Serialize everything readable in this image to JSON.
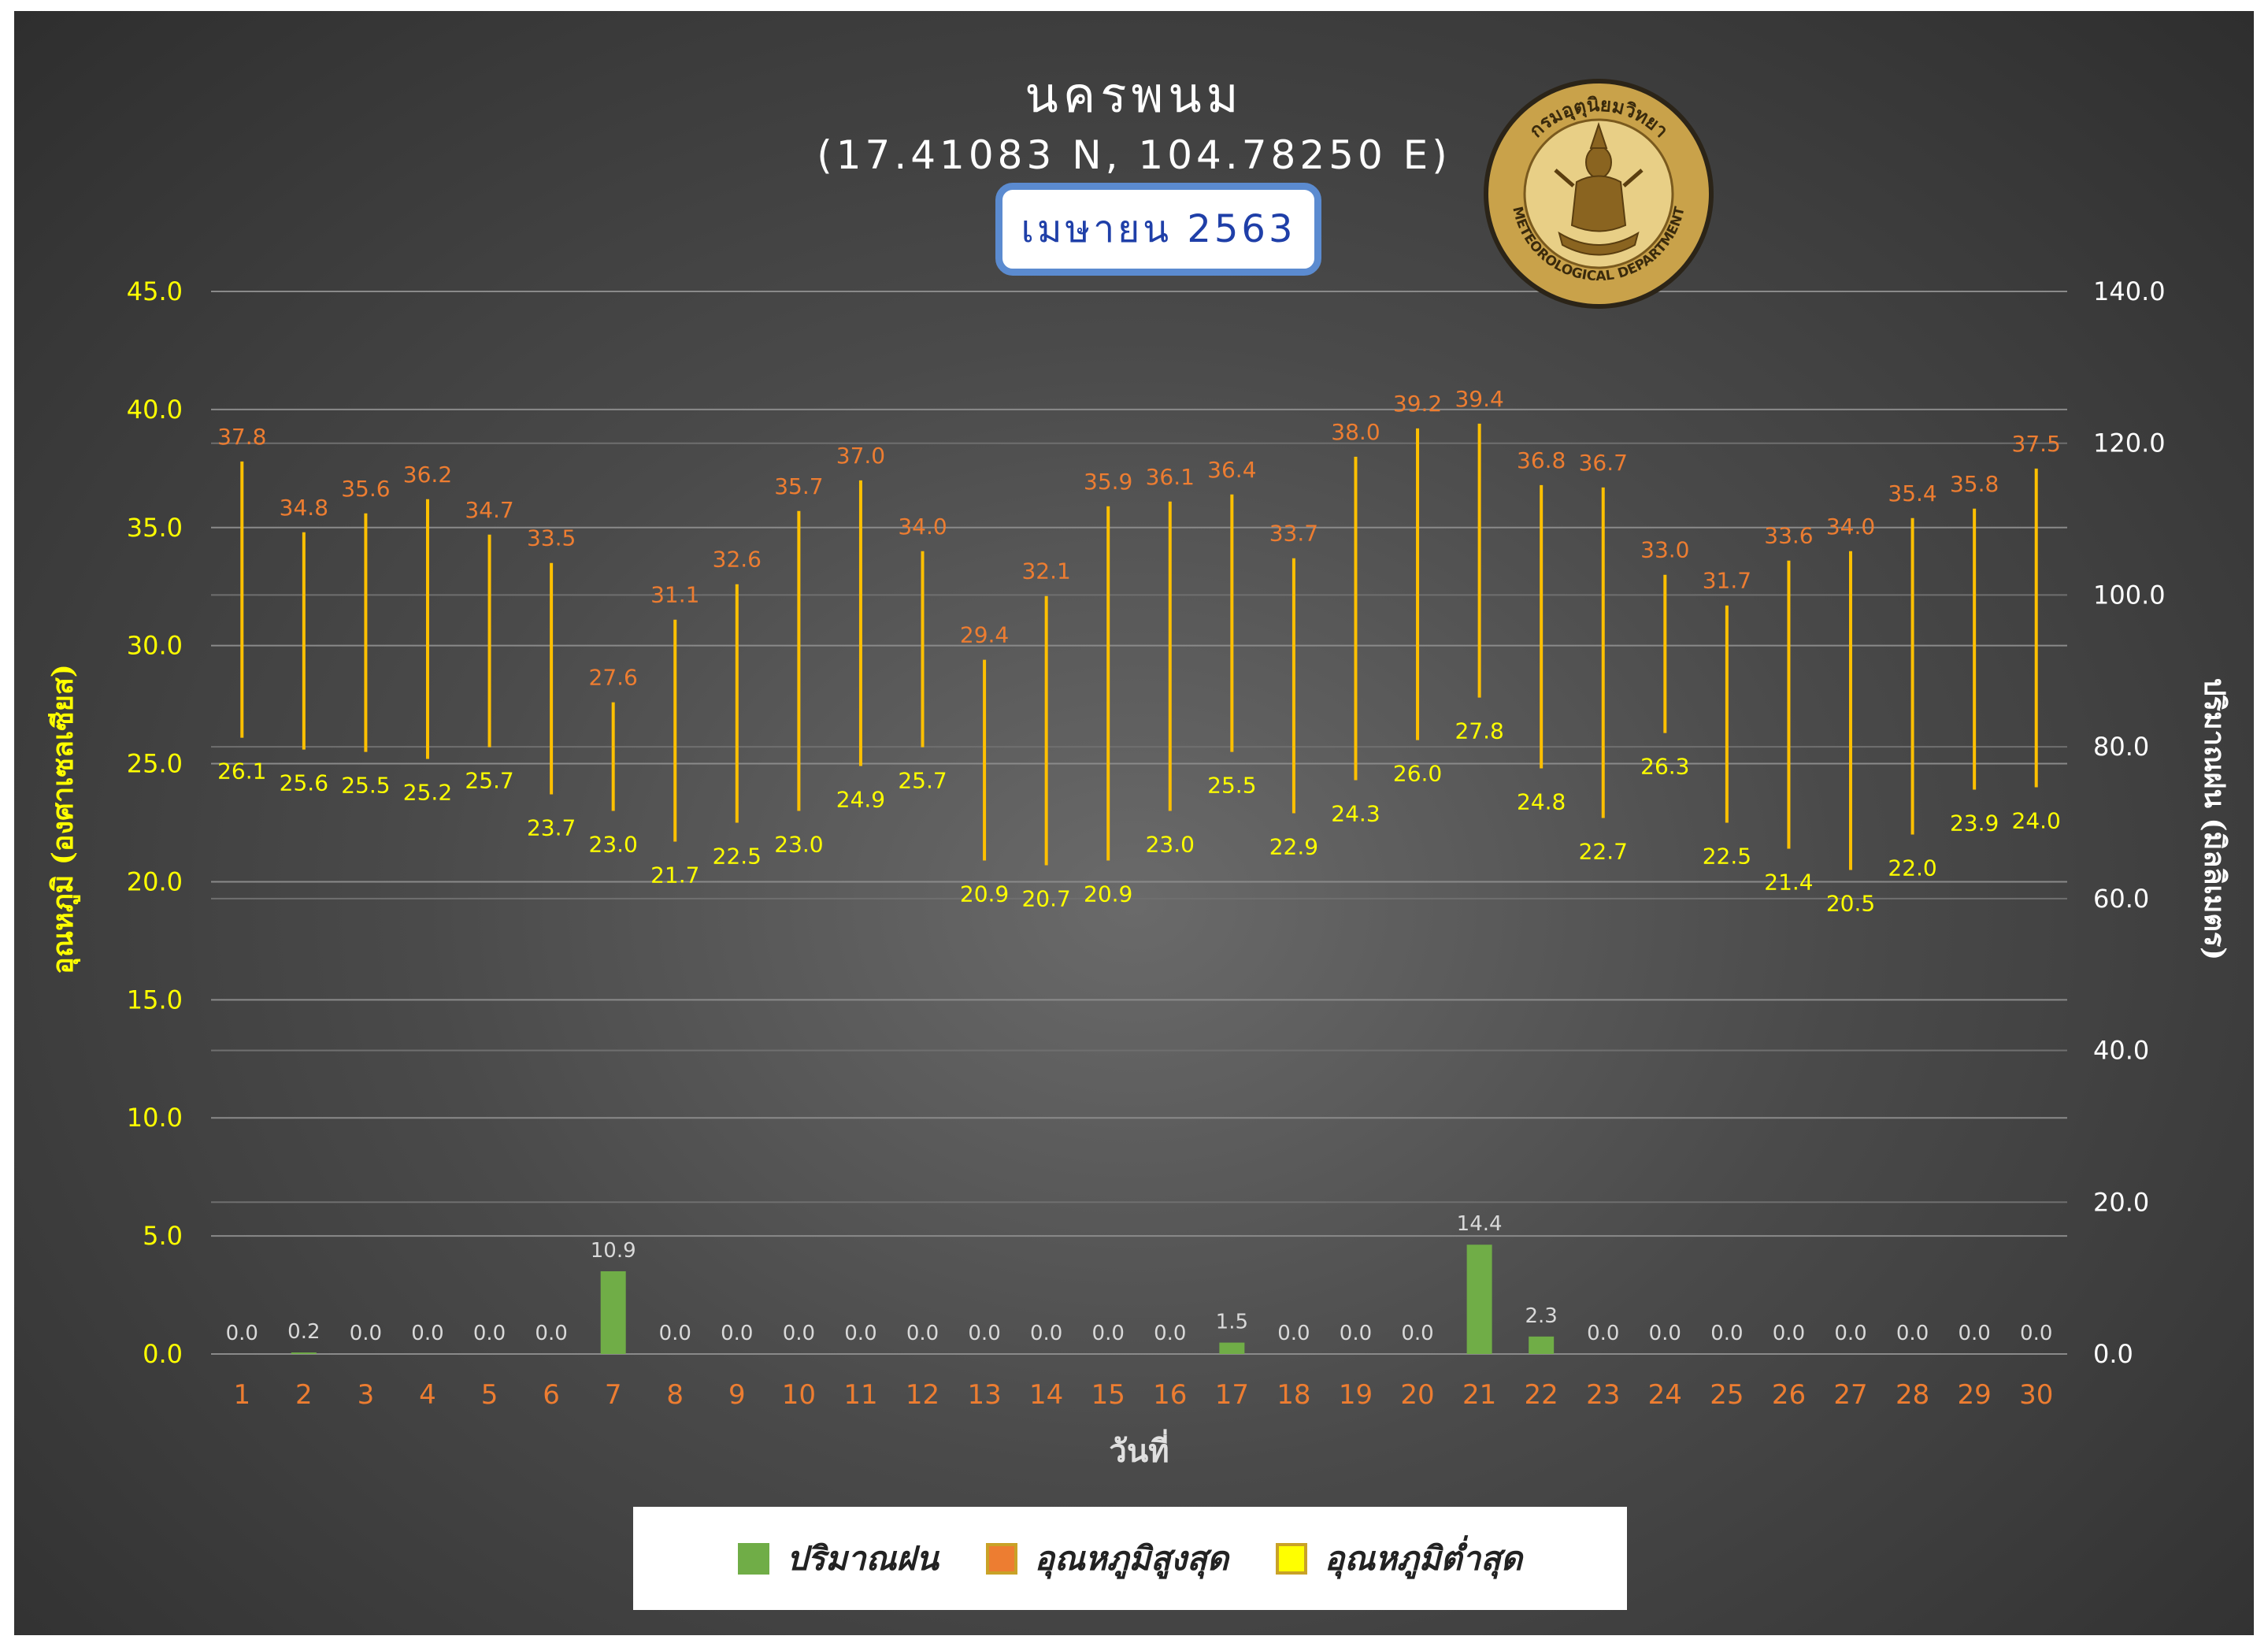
{
  "header": {
    "title": "นครพนม",
    "coordinates": "(17.41083 N, 104.78250 E)",
    "month": "เมษายน 2563"
  },
  "logo": {
    "top_text": "กรมอุตุนิยมวิทยา",
    "bottom_text": "METEOROLOGICAL DEPARTMENT"
  },
  "colors": {
    "bar": "#70ad47",
    "tmax_label": "#ed7d31",
    "tmin_label": "#ffff00",
    "range_line": "#ffc000",
    "left_axis": "#ffff00",
    "right_axis": "#ffffff",
    "x_ticks": "#ed7d31",
    "bar_label": "#d9d9d9"
  },
  "chart_data": {
    "type": "bar",
    "title": "นครพนม",
    "xlabel": "วันที่",
    "ylabel_left": "อุณหภูมิ (องศาเซลเซียส)",
    "ylabel_right": "ปริมาณฝน (มิลลิเมตร)",
    "left_ylim": [
      0,
      45
    ],
    "left_ticks": [
      "0.0",
      "5.0",
      "10.0",
      "15.0",
      "20.0",
      "25.0",
      "30.0",
      "35.0",
      "40.0",
      "45.0"
    ],
    "right_ylim": [
      0,
      140
    ],
    "right_ticks": [
      "0.0",
      "20.0",
      "40.0",
      "60.0",
      "80.0",
      "100.0",
      "120.0",
      "140.0"
    ],
    "categories": [
      "1",
      "2",
      "3",
      "4",
      "5",
      "6",
      "7",
      "8",
      "9",
      "10",
      "11",
      "12",
      "13",
      "14",
      "15",
      "16",
      "17",
      "18",
      "19",
      "20",
      "21",
      "22",
      "23",
      "24",
      "25",
      "26",
      "27",
      "28",
      "29",
      "30"
    ],
    "series": [
      {
        "name": "ปริมาณฝน",
        "axis": "right",
        "type": "bar",
        "values": [
          0.0,
          0.2,
          0.0,
          0.0,
          0.0,
          0.0,
          10.9,
          0.0,
          0.0,
          0.0,
          0.0,
          0.0,
          0.0,
          0.0,
          0.0,
          0.0,
          1.5,
          0.0,
          0.0,
          0.0,
          14.4,
          2.3,
          0.0,
          0.0,
          0.0,
          0.0,
          0.0,
          0.0,
          0.0,
          0.0
        ]
      },
      {
        "name": "อุณหภูมิสูงสุด",
        "axis": "left",
        "type": "high",
        "values": [
          37.8,
          34.8,
          35.6,
          36.2,
          34.7,
          33.5,
          27.6,
          31.1,
          32.6,
          35.7,
          37.0,
          34.0,
          29.4,
          32.1,
          35.9,
          36.1,
          36.4,
          33.7,
          38.0,
          39.2,
          39.4,
          36.8,
          36.7,
          33.0,
          31.7,
          33.6,
          34.0,
          35.4,
          35.8,
          37.5
        ]
      },
      {
        "name": "อุณหภูมิต่ำสุด",
        "axis": "left",
        "type": "low",
        "values": [
          26.1,
          25.6,
          25.5,
          25.2,
          25.7,
          23.7,
          23.0,
          21.7,
          22.5,
          23.0,
          24.9,
          25.7,
          20.9,
          20.7,
          20.9,
          23.0,
          25.5,
          22.9,
          24.3,
          26.0,
          27.8,
          24.8,
          22.7,
          26.3,
          22.5,
          21.4,
          20.5,
          22.0,
          23.9,
          24.0
        ]
      }
    ],
    "grid": true,
    "legend": "bottom"
  },
  "legend": [
    {
      "label": "ปริมาณฝน",
      "color": "#70ad47"
    },
    {
      "label": "อุณหภูมิสูงสุด",
      "color": "#ed7d31"
    },
    {
      "label": "อุณหภูมิต่ำสุด",
      "color": "#ffff00"
    }
  ]
}
